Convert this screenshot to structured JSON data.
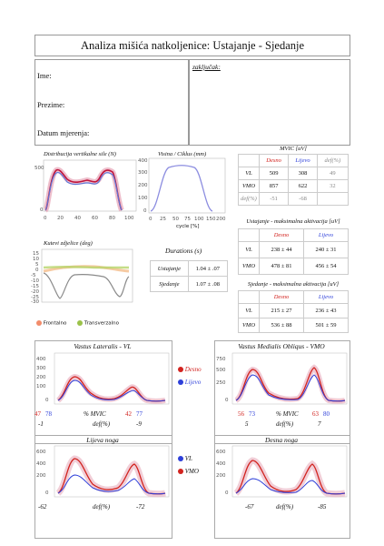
{
  "title": "Analiza mišića natkoljenice:  Ustajanje - Sjedanje",
  "patient": {
    "ime": "Ime:",
    "prezime": "Prezime:",
    "datum": "Datum mjerenja:"
  },
  "zakljucak": "zaključak:",
  "charts_labels": {
    "vertical_force": "Distribucija vertikalne sile (N)",
    "height": "Visina / Ciklus (mm)",
    "height_xlabel": "cycle [%]",
    "knee_angle": "Kutevi zdjelice (deg)",
    "frontalno": "Frontalno",
    "transverzalno": "Transverzalno",
    "durations_title": "Durations (s)"
  },
  "durations": [
    {
      "label": "Ustajanje",
      "value": "1.04 ± .07"
    },
    {
      "label": "Sjedanje",
      "value": "1.07 ± .08"
    }
  ],
  "mvic": {
    "title": "MVIC [uV]",
    "headers": [
      "Desno",
      "Lijevo",
      "def(%)"
    ],
    "rows": [
      {
        "label": "VL",
        "desno": "509",
        "lijevo": "308",
        "def": "49"
      },
      {
        "label": "VMO",
        "desno": "857",
        "lijevo": "622",
        "def": "32"
      },
      {
        "label": "def(%)",
        "desno": "-51",
        "lijevo": "-68",
        "def": ""
      }
    ]
  },
  "ustajanje": {
    "title": "Ustajanje - maksimalna aktivacija [uV]",
    "headers": [
      "Desno",
      "Lijevo"
    ],
    "rows": [
      {
        "label": "VL",
        "desno": "238 ± 44",
        "lijevo": "240 ± 31"
      },
      {
        "label": "VMO",
        "desno": "478 ± 81",
        "lijevo": "456 ± 54"
      }
    ]
  },
  "sjedanje": {
    "title": "Sjedanje - maksimalna aktivacija [uV]",
    "headers": [
      "Desno",
      "Lijevo"
    ],
    "rows": [
      {
        "label": "VL",
        "desno": "215 ± 27",
        "lijevo": "236 ± 43"
      },
      {
        "label": "VMO",
        "desno": "536 ± 88",
        "lijevo": "501 ± 59"
      }
    ]
  },
  "vl_panel": {
    "title": "Vastus Lateralis - VL",
    "mvic_label": "% MVIC",
    "def_label": "def(%)",
    "left_red": "47",
    "left_blue": "78",
    "right_red": "42",
    "right_blue": "77",
    "left_def": "-1",
    "right_def": "-9"
  },
  "vmo_panel": {
    "title": "Vastus Medialis Obliqus - VMO",
    "mvic_label": "% MVIC",
    "def_label": "def(%)",
    "left_red": "56",
    "left_blue": "73",
    "right_red": "63",
    "right_blue": "80",
    "left_def": "5",
    "right_def": "7"
  },
  "legend_mid1": {
    "desno": "Desno",
    "lijevo": "Lijevo"
  },
  "lijeva_noga": {
    "title": "Lijeva noga",
    "def_label": "def(%)",
    "left_def": "-62",
    "right_def": "-72"
  },
  "desna_noga": {
    "title": "Desna noga",
    "def_label": "def(%)",
    "left_def": "-67",
    "right_def": "-85"
  },
  "legend_mid2": {
    "vl": "VL",
    "vmo": "VMO"
  },
  "colors": {
    "desno": "#d2231f",
    "lijevo": "#2d3fd9",
    "frontalno": "#f28c6b",
    "transverzalno": "#9bc24a",
    "height_line": "#8c8de0"
  }
}
